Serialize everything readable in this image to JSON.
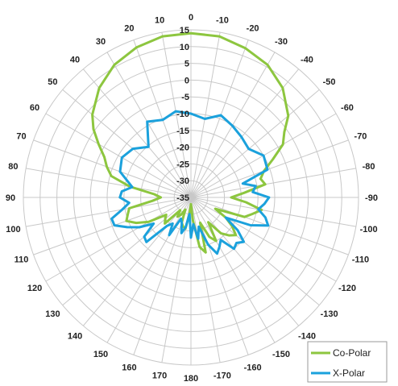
{
  "chart_data": {
    "type": "polar-line",
    "angle_ticks": [
      0,
      10,
      20,
      30,
      40,
      50,
      60,
      70,
      80,
      90,
      100,
      110,
      120,
      130,
      140,
      150,
      160,
      170,
      180,
      -170,
      -160,
      -150,
      -140,
      -130,
      -120,
      -110,
      -100,
      -90,
      -80,
      -70,
      -60,
      -50,
      -40,
      -30,
      -20,
      -10
    ],
    "angle_tick_labels": [
      "0",
      "10",
      "20",
      "30",
      "40",
      "50",
      "60",
      "70",
      "80",
      "90",
      "100",
      "110",
      "120",
      "130",
      "140",
      "150",
      "160",
      "170",
      "180",
      "-170",
      "-160",
      "-150",
      "-140",
      "-130",
      "-120",
      "-110",
      "-100",
      "-90",
      "-80",
      "-70",
      "-60",
      "-50",
      "-40",
      "-30",
      "-20",
      "-10"
    ],
    "radial_range": [
      -35,
      15
    ],
    "radial_ticks": [
      -35,
      -30,
      -25,
      -20,
      -15,
      -10,
      -5,
      0,
      5,
      10,
      15
    ],
    "radial_tick_labels": [
      "-35",
      "-30",
      "-25",
      "-20",
      "-15",
      "-10",
      "-5",
      "0",
      "5",
      "10",
      "15"
    ],
    "grid": true,
    "legend_position": "bottom-right",
    "series": [
      {
        "name": "Co-Polar",
        "color": "#8dc63f",
        "angles": [
          0,
          10,
          20,
          30,
          40,
          50,
          55,
          60,
          65,
          70,
          75,
          80,
          85,
          90,
          95,
          100,
          105,
          110,
          115,
          120,
          125,
          130,
          135,
          140,
          145,
          150,
          155,
          160,
          165,
          170,
          175,
          180,
          -175,
          -170,
          -165,
          -160,
          -155,
          -150,
          -145,
          -140,
          -135,
          -130,
          -125,
          -120,
          -115,
          -110,
          -105,
          -100,
          -95,
          -90,
          -85,
          -80,
          -75,
          -70,
          -65,
          -60,
          -55,
          -50,
          -40,
          -30,
          -20,
          -10
        ],
        "values": [
          14,
          13.8,
          12.6,
          10.7,
          7.6,
          3.4,
          0.5,
          -3.2,
          -6.5,
          -8.3,
          -10.4,
          -16.5,
          -24,
          -26,
          -23.5,
          -16.3,
          -15.5,
          -14.5,
          -17,
          -20.5,
          -26,
          -25,
          -24,
          -30,
          -28,
          -29,
          -31,
          -27,
          -26,
          -25.5,
          -30,
          -33,
          -28,
          -20,
          -18,
          -27,
          -22,
          -20,
          -26,
          -21,
          -19,
          -17.5,
          -20,
          -23,
          -27,
          -18,
          -16,
          -13.6,
          -18.5,
          -23,
          -19,
          -12.5,
          -13.5,
          -11.8,
          -8,
          -3.3,
          -1,
          2.9,
          7.6,
          10.7,
          12.4,
          13.8
        ]
      },
      {
        "name": "X-Polar",
        "color": "#1ba1dc",
        "angles": [
          0,
          10,
          20,
          30,
          40,
          50,
          60,
          70,
          80,
          85,
          90,
          95,
          100,
          105,
          110,
          115,
          120,
          125,
          130,
          135,
          140,
          145,
          150,
          155,
          160,
          165,
          170,
          175,
          180,
          -175,
          -170,
          -165,
          -160,
          -155,
          -150,
          -145,
          -140,
          -135,
          -130,
          -125,
          -120,
          -115,
          -110,
          -105,
          -100,
          -95,
          -90,
          -85,
          -80,
          -75,
          -70,
          -60,
          -50,
          -40,
          -30,
          -20,
          -10
        ],
        "values": [
          -10,
          -8.9,
          -10.4,
          -8.9,
          -15.3,
          -12.4,
          -11.2,
          -12.5,
          -17.2,
          -14.3,
          -13.8,
          -16.5,
          -14.2,
          -10.5,
          -10.7,
          -14,
          -17.2,
          -21.4,
          -16.8,
          -16.2,
          -24,
          -25.5,
          -22,
          -28,
          -27,
          -24,
          -26,
          -30,
          -23,
          -27,
          -22.5,
          -26,
          -20,
          -16.5,
          -18,
          -19.5,
          -15,
          -15.8,
          -14.4,
          -18,
          -23,
          -15.4,
          -10.5,
          -12,
          -14.6,
          -13,
          -11.7,
          -16.5,
          -15.4,
          -19,
          -10.7,
          -10,
          -12.5,
          -11.5,
          -10.3,
          -8.9,
          -11.2
        ]
      }
    ]
  },
  "legend": {
    "items": [
      {
        "label": "Co-Polar",
        "color": "#8dc63f"
      },
      {
        "label": "X-Polar",
        "color": "#1ba1dc"
      }
    ]
  }
}
